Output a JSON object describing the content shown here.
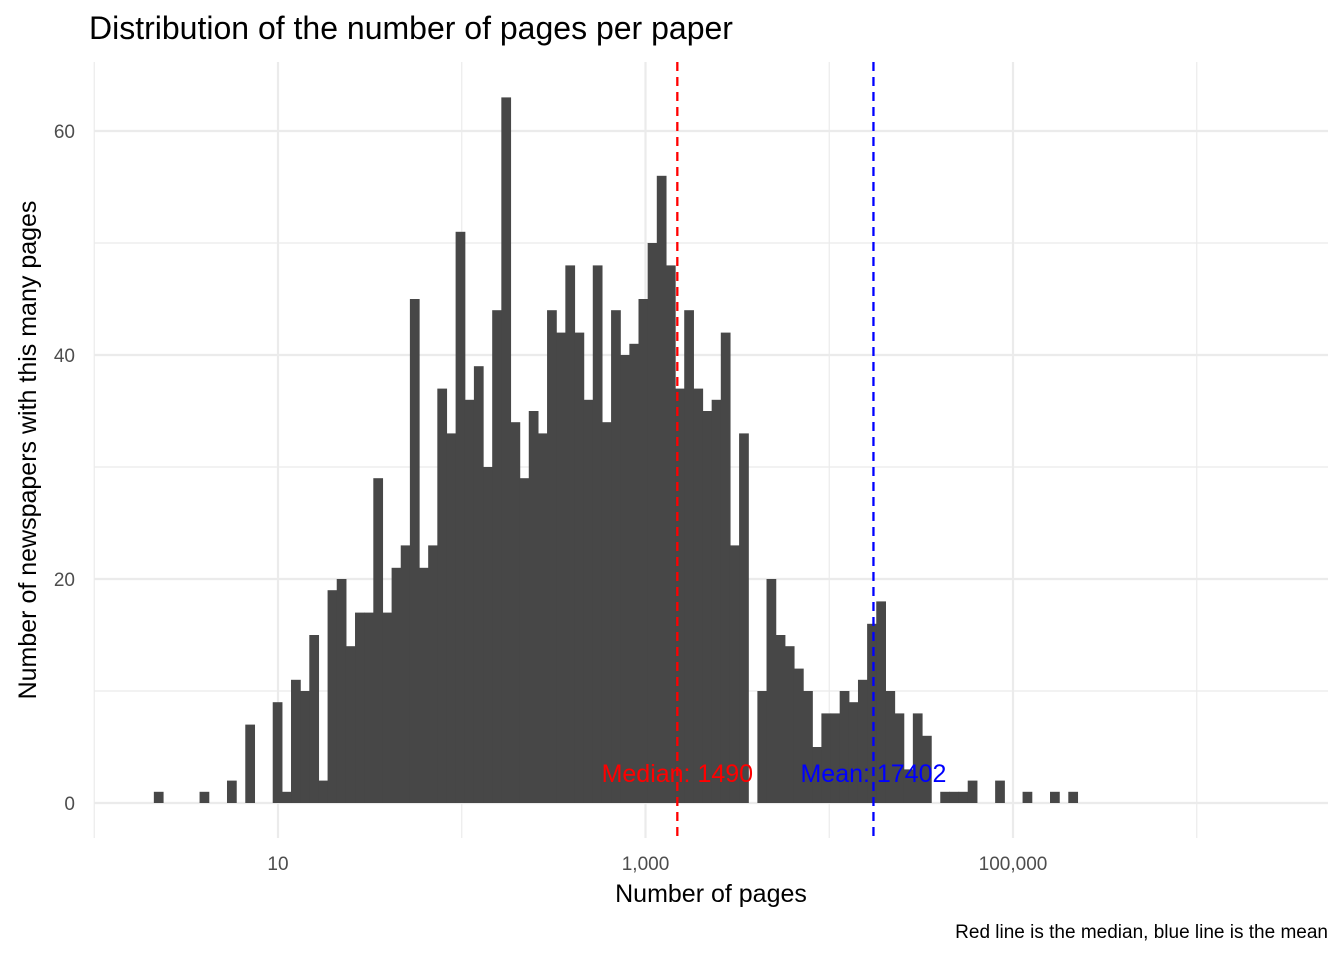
{
  "chart_data": {
    "type": "bar",
    "title": "Distribution of the number of pages per paper",
    "xlabel": "Number of pages",
    "ylabel": "Number of newspapers with this many pages",
    "caption": "Red line is the median, blue line is the mean",
    "x_scale": "log10",
    "xlim": [
      1.0,
      500000
    ],
    "ylim": [
      0,
      65
    ],
    "x_ticks": [
      10,
      1000,
      100000
    ],
    "x_tick_labels": [
      "10",
      "1,000",
      "100,000"
    ],
    "y_ticks": [
      0,
      20,
      40,
      60
    ],
    "y_tick_labels": [
      "0",
      "20",
      "40",
      "60"
    ],
    "grid": true,
    "bar_color": "#474747",
    "bins": {
      "x_start": 2.11,
      "x_end": 316228,
      "count": 104,
      "values": [
        1,
        0,
        0,
        0,
        0,
        1,
        0,
        0,
        2,
        0,
        7,
        0,
        0,
        9,
        1,
        11,
        10,
        15,
        2,
        19,
        20,
        14,
        17,
        17,
        29,
        17,
        21,
        23,
        45,
        21,
        23,
        37,
        33,
        51,
        36,
        39,
        30,
        44,
        63,
        34,
        29,
        35,
        33,
        44,
        42,
        48,
        42,
        36,
        48,
        34,
        44,
        40,
        41,
        45,
        50,
        56,
        48,
        37,
        44,
        37,
        35,
        36,
        42,
        23,
        33,
        0,
        10,
        20,
        15,
        14,
        12,
        10,
        5,
        8,
        8,
        10,
        9,
        11,
        16,
        18,
        10,
        8,
        3,
        8,
        6,
        0,
        1,
        1,
        1,
        2,
        0,
        0,
        2,
        0,
        0,
        1,
        0,
        0,
        1,
        0,
        1,
        0,
        0,
        0
      ]
    },
    "median": {
      "value": 1490,
      "label": "Median: 1490",
      "color": "#ff0000"
    },
    "mean": {
      "value": 17402,
      "label": "Mean: 17402",
      "color": "#0000ff"
    }
  }
}
